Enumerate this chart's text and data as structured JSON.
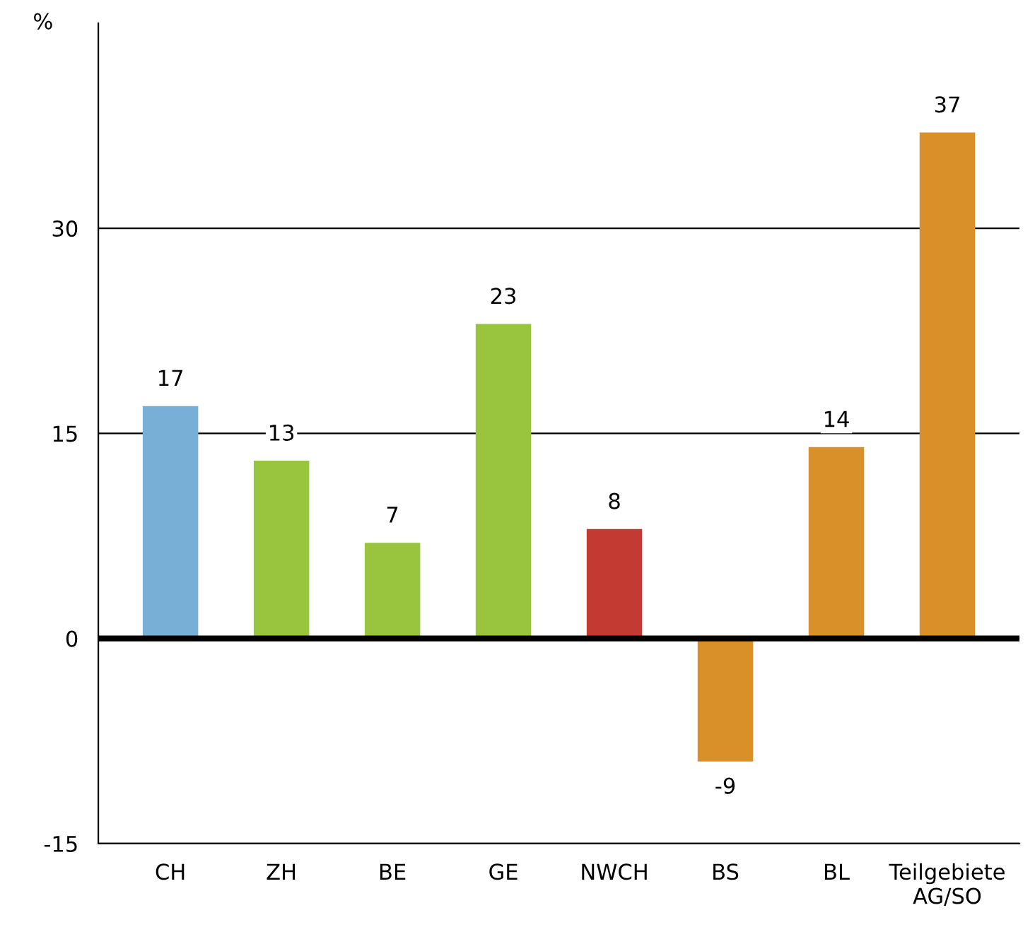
{
  "chart_data": {
    "type": "bar",
    "ylabel": "%",
    "categories": [
      "CH",
      "ZH",
      "BE",
      "GE",
      "NWCH",
      "BS",
      "BL",
      "Teilgebiete\nAG/SO"
    ],
    "values": [
      17,
      13,
      7,
      23,
      8,
      -9,
      14,
      37
    ],
    "colors": [
      "#78afd6",
      "#98c53d",
      "#98c53d",
      "#98c53d",
      "#c23a32",
      "#d99028",
      "#d99028",
      "#d99028"
    ],
    "ylim": [
      -15,
      45
    ],
    "yticks": [
      -15,
      0,
      15,
      30
    ],
    "grid": "y",
    "data_labels": true,
    "ref_lines": [
      {
        "axis": "y",
        "value": 0,
        "color": "#000000"
      }
    ]
  }
}
